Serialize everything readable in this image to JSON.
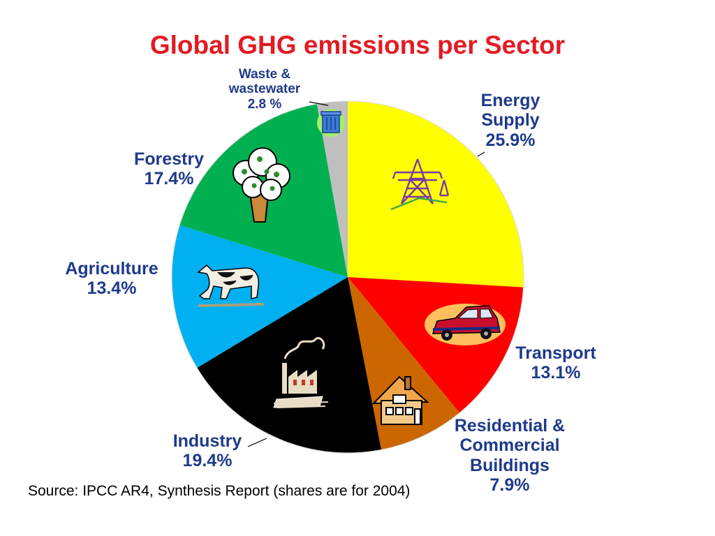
{
  "colors": {
    "title": "#e31b23",
    "labels": "#1f3a8a"
  },
  "chart_data": {
    "type": "pie",
    "title": "Global GHG emissions per Sector",
    "start_angle_deg": 0,
    "direction": "clockwise",
    "slices": [
      {
        "name": "Energy Supply",
        "value": 25.9,
        "value_label": "25.9%",
        "color": "#ffff00",
        "icon": "electricity-pylon-icon"
      },
      {
        "name": "Transport",
        "value": 13.1,
        "value_label": "13.1%",
        "color": "#ff0000",
        "icon": "car-icon"
      },
      {
        "name": "Residential & Commercial Buildings",
        "value": 7.9,
        "value_label": "7.9%",
        "color": "#cc6600",
        "icon": "house-icon"
      },
      {
        "name": "Industry",
        "value": 19.4,
        "value_label": "19.4%",
        "color": "#000000",
        "icon": "factory-icon"
      },
      {
        "name": "Agriculture",
        "value": 13.4,
        "value_label": "13.4%",
        "color": "#00b0f0",
        "icon": "cow-icon"
      },
      {
        "name": "Forestry",
        "value": 17.4,
        "value_label": "17.4%",
        "color": "#00b050",
        "icon": "tree-icon"
      },
      {
        "name": "Waste & wastewater",
        "value": 2.8,
        "value_label": "2.8 %",
        "color": "#bfbfbf",
        "icon": "trash-can-icon"
      }
    ]
  },
  "labels": {
    "energy": [
      "Energy",
      "Supply",
      "25.9%"
    ],
    "transport": [
      "Transport",
      "13.1%"
    ],
    "buildings": [
      "Residential &",
      "Commercial",
      "Buildings",
      "7.9%"
    ],
    "industry": [
      "Industry",
      "19.4%"
    ],
    "agriculture": [
      "Agriculture",
      "13.4%"
    ],
    "forestry": [
      "Forestry",
      "17.4%"
    ],
    "waste": [
      "Waste &",
      "wastewater",
      "2.8 %"
    ]
  },
  "source_note": "Source: IPCC AR4, Synthesis Report (shares are for 2004)"
}
